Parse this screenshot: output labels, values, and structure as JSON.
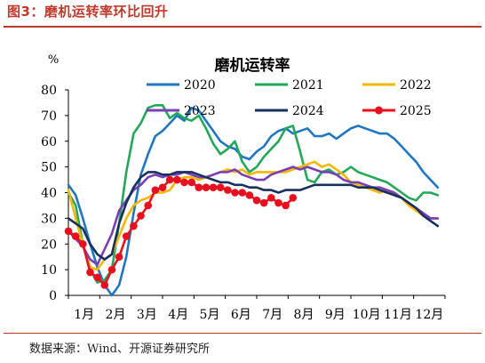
{
  "figure": {
    "title": "图3：磨机运转率环比回升",
    "source": "数据来源：Wind、开源证券研究所"
  },
  "chart_data": {
    "type": "line",
    "title": "磨机运转率",
    "ylabel": "%",
    "ylim": [
      0,
      80
    ],
    "yticks": [
      0,
      10,
      20,
      30,
      40,
      50,
      60,
      70,
      80
    ],
    "xticks": [
      "1月",
      "2月",
      "3月",
      "4月",
      "5月",
      "6月",
      "7月",
      "8月",
      "9月",
      "10月",
      "11月",
      "12月"
    ],
    "xlim": [
      0,
      52
    ],
    "grid": false,
    "legend": "top",
    "series": [
      {
        "name": "2020",
        "color": "#1f77c4",
        "marker": "none",
        "x": [
          0,
          1,
          2,
          3,
          4,
          5,
          6,
          7,
          8,
          9,
          10,
          11,
          12,
          13,
          14,
          15,
          16,
          17,
          18,
          19,
          20,
          21,
          22,
          23,
          24,
          25,
          26,
          27,
          28,
          29,
          30,
          31,
          32,
          33,
          34,
          35,
          36,
          37,
          38,
          39,
          40,
          41,
          42,
          43,
          44,
          45,
          46,
          47,
          48,
          49,
          50,
          51
        ],
        "values": [
          43,
          39,
          30,
          20,
          11,
          4,
          0,
          4,
          15,
          32,
          47,
          55,
          62,
          64,
          67,
          70,
          68,
          73,
          72,
          68,
          64,
          60,
          58,
          57,
          54,
          53,
          56,
          58,
          62,
          64,
          65,
          63,
          64,
          65,
          62,
          62,
          63,
          61,
          63,
          65,
          66,
          65,
          64,
          63,
          63,
          61,
          58,
          55,
          52,
          48,
          45,
          42
        ]
      },
      {
        "name": "2021",
        "color": "#22a858",
        "marker": "none",
        "x": [
          0,
          1,
          2,
          3,
          4,
          5,
          6,
          7,
          8,
          9,
          10,
          11,
          12,
          13,
          14,
          15,
          16,
          17,
          18,
          19,
          20,
          21,
          22,
          23,
          24,
          25,
          26,
          27,
          28,
          29,
          30,
          31,
          32,
          33,
          34,
          35,
          36,
          37,
          38,
          39,
          40,
          41,
          42,
          43,
          44,
          45,
          46,
          47,
          48,
          49,
          50,
          51
        ],
        "values": [
          40,
          35,
          20,
          10,
          5,
          6,
          10,
          28,
          48,
          63,
          67,
          73,
          74,
          74,
          69,
          71,
          69,
          68,
          70,
          65,
          59,
          55,
          57,
          60,
          52,
          48,
          50,
          54,
          57,
          60,
          65,
          66,
          56,
          45,
          44,
          48,
          49,
          47,
          48,
          50,
          48,
          47,
          46,
          45,
          44,
          42,
          40,
          38,
          37,
          40,
          40,
          39
        ]
      },
      {
        "name": "2022",
        "color": "#f5b800",
        "marker": "none",
        "x": [
          0,
          1,
          2,
          3,
          4,
          5,
          6,
          7,
          8,
          9,
          10,
          11,
          12,
          13,
          14,
          15,
          16,
          17,
          18,
          19,
          20,
          21,
          22,
          23,
          24,
          25,
          26,
          27,
          28,
          29,
          30,
          31,
          32,
          33,
          34,
          35,
          36,
          37,
          38,
          39,
          40,
          41,
          42,
          43,
          44,
          45,
          46,
          47,
          48,
          49,
          50,
          51
        ],
        "values": [
          41,
          30,
          20,
          11,
          10,
          14,
          16,
          23,
          30,
          35,
          37,
          38,
          40,
          40,
          41,
          45,
          46,
          46,
          45,
          46,
          47,
          48,
          49,
          48,
          49,
          47,
          48,
          48,
          48,
          48,
          48,
          49,
          50,
          51,
          52,
          50,
          51,
          49,
          47,
          44,
          43,
          42,
          41,
          40,
          41,
          39,
          38,
          35,
          33,
          31,
          30,
          30
        ]
      },
      {
        "name": "2023",
        "color": "#7b3fb5",
        "marker": "none",
        "x": [
          0,
          1,
          2,
          3,
          4,
          5,
          6,
          7,
          8,
          9,
          10,
          11,
          12,
          13,
          14,
          15,
          16,
          17,
          18,
          19,
          20,
          21,
          22,
          23,
          24,
          25,
          26,
          27,
          28,
          29,
          30,
          31,
          32,
          33,
          34,
          35,
          36,
          37,
          38,
          39,
          40,
          41,
          42,
          43,
          44,
          45,
          46,
          47,
          48,
          49,
          50,
          51
        ],
        "values": [
          25,
          22,
          19,
          14,
          12,
          18,
          24,
          33,
          37,
          41,
          43,
          46,
          47,
          46,
          47,
          47,
          48,
          47,
          46,
          46,
          47,
          48,
          48,
          49,
          47,
          46,
          45,
          45,
          47,
          48,
          49,
          50,
          49,
          50,
          49,
          48,
          48,
          47,
          45,
          44,
          44,
          43,
          42,
          42,
          41,
          40,
          38,
          36,
          34,
          32,
          30,
          30
        ]
      },
      {
        "name": "2024",
        "color": "#17305f",
        "marker": "none",
        "x": [
          0,
          1,
          2,
          3,
          4,
          5,
          6,
          7,
          8,
          9,
          10,
          11,
          12,
          13,
          14,
          15,
          16,
          17,
          18,
          19,
          20,
          21,
          22,
          23,
          24,
          25,
          26,
          27,
          28,
          29,
          30,
          31,
          32,
          33,
          34,
          35,
          36,
          37,
          38,
          39,
          40,
          41,
          42,
          43,
          44,
          45,
          46,
          47,
          48,
          49,
          50,
          51
        ],
        "values": [
          30,
          28,
          26,
          20,
          16,
          14,
          16,
          28,
          36,
          42,
          46,
          48,
          48,
          47,
          47,
          48,
          48,
          48,
          47,
          46,
          45,
          44,
          44,
          43,
          43,
          42,
          42,
          41,
          41,
          40,
          41,
          41,
          41,
          42,
          43,
          43,
          43,
          43,
          43,
          43,
          42,
          42,
          42,
          41,
          40,
          39,
          38,
          36,
          34,
          31,
          29,
          27
        ]
      },
      {
        "name": "2025",
        "color": "#e8101f",
        "marker": "circle",
        "x": [
          0,
          1,
          2,
          3,
          4,
          5,
          6,
          7,
          8,
          9,
          10,
          11,
          12,
          13,
          14,
          15,
          16,
          17,
          18,
          19,
          20,
          21,
          22,
          23,
          24,
          25,
          26,
          27,
          28,
          29,
          30,
          31
        ],
        "values": [
          25,
          23,
          20,
          9,
          7,
          4,
          10,
          15,
          23,
          27,
          31,
          35,
          41,
          42,
          45,
          45,
          44,
          44,
          42,
          42,
          42,
          42,
          41,
          40,
          40,
          39,
          37,
          36,
          38,
          36,
          35,
          38
        ]
      }
    ]
  }
}
